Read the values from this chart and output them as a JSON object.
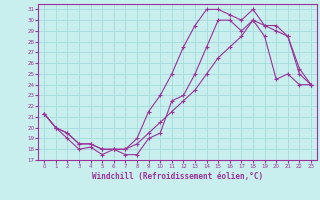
{
  "xlabel": "Windchill (Refroidissement éolien,°C)",
  "bg_color": "#c8eeee",
  "grid_color": "#aadddd",
  "line_color": "#993399",
  "xlim": [
    -0.5,
    23.5
  ],
  "ylim": [
    17,
    31.5
  ],
  "xticks": [
    0,
    1,
    2,
    3,
    4,
    5,
    6,
    7,
    8,
    9,
    10,
    11,
    12,
    13,
    14,
    15,
    16,
    17,
    18,
    19,
    20,
    21,
    22,
    23
  ],
  "yticks": [
    17,
    18,
    19,
    20,
    21,
    22,
    23,
    24,
    25,
    26,
    27,
    28,
    29,
    30,
    31
  ],
  "line1_x": [
    0,
    1,
    2,
    3,
    4,
    5,
    6,
    7,
    8,
    9,
    10,
    11,
    12,
    13,
    14,
    15,
    16,
    17,
    18,
    19,
    20,
    21,
    22,
    23
  ],
  "line1_y": [
    21.3,
    20.0,
    19.0,
    18.0,
    18.2,
    17.5,
    18.0,
    17.5,
    17.5,
    19.0,
    19.5,
    22.5,
    23.0,
    25.0,
    27.5,
    30.0,
    30.0,
    29.0,
    30.0,
    28.5,
    24.5,
    25.0,
    24.0,
    24.0
  ],
  "line2_x": [
    0,
    1,
    2,
    3,
    4,
    5,
    6,
    7,
    8,
    9,
    10,
    11,
    12,
    13,
    14,
    15,
    16,
    17,
    18,
    19,
    20,
    21,
    22,
    23
  ],
  "line2_y": [
    21.3,
    20.0,
    19.5,
    18.5,
    18.5,
    18.0,
    18.0,
    18.0,
    19.0,
    21.5,
    23.0,
    25.0,
    27.5,
    29.5,
    31.0,
    31.0,
    30.5,
    30.0,
    31.0,
    29.5,
    29.5,
    28.5,
    25.5,
    24.0
  ],
  "line3_x": [
    0,
    1,
    2,
    3,
    4,
    5,
    6,
    7,
    8,
    9,
    10,
    11,
    12,
    13,
    14,
    15,
    16,
    17,
    18,
    19,
    20,
    21,
    22,
    23
  ],
  "line3_y": [
    21.3,
    20.0,
    19.5,
    18.5,
    18.5,
    18.0,
    18.0,
    18.0,
    18.5,
    19.5,
    20.5,
    21.5,
    22.5,
    23.5,
    25.0,
    26.5,
    27.5,
    28.5,
    30.0,
    29.5,
    29.0,
    28.5,
    25.0,
    24.0
  ]
}
